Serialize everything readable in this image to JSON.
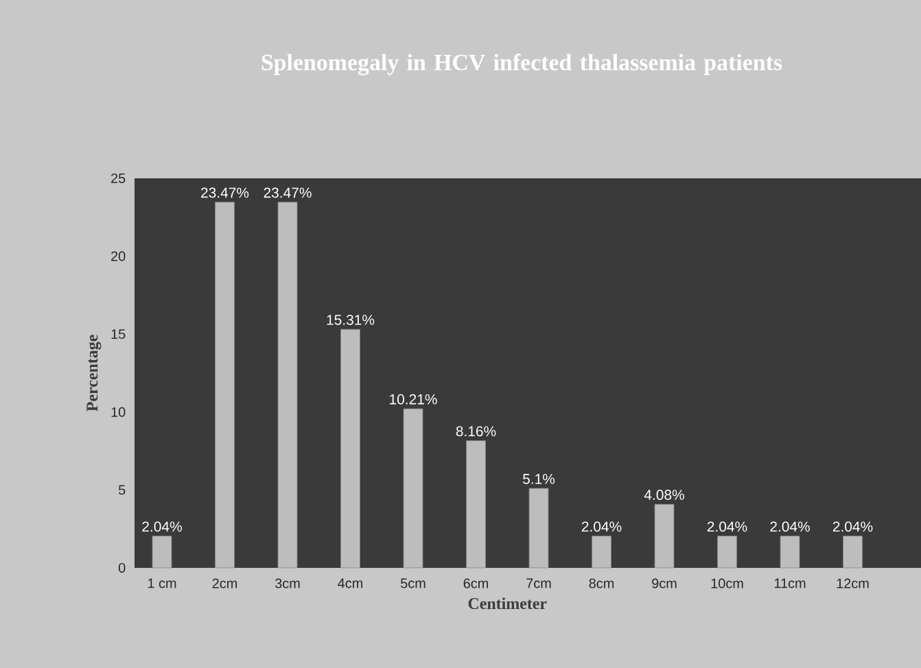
{
  "chart_data": {
    "type": "bar",
    "title": "Splenomegaly in HCV infected thalassemia patients",
    "xlabel": "Centimeter",
    "ylabel": "Percentage",
    "categories": [
      "1 cm",
      "2cm",
      "3cm",
      "4cm",
      "5cm",
      "6cm",
      "7cm",
      "8cm",
      "9cm",
      "10cm",
      "11cm",
      "12cm"
    ],
    "values": [
      2.04,
      23.47,
      23.47,
      15.31,
      10.21,
      8.16,
      5.1,
      2.04,
      4.08,
      2.04,
      2.04,
      2.04
    ],
    "value_labels": [
      "2.04%",
      "23.47%",
      "23.47%",
      "15.31%",
      "10.21%",
      "8.16%",
      "5.1%",
      "2.04%",
      "4.08%",
      "2.04%",
      "2.04%",
      "2.04%"
    ],
    "color": "#bdbdbd",
    "ylim": [
      0,
      25
    ],
    "yticks": [
      0,
      5,
      10,
      15,
      20,
      25
    ]
  }
}
